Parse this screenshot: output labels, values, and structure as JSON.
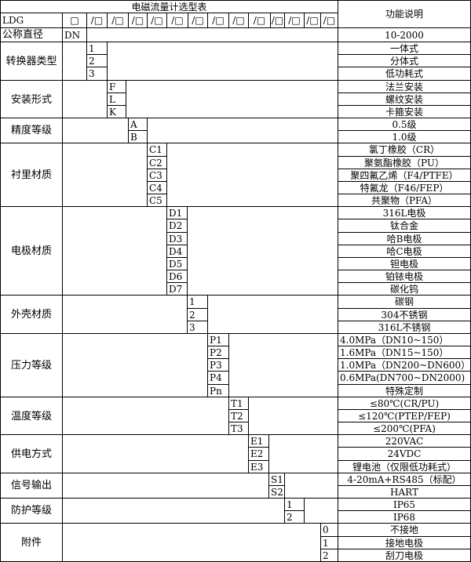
{
  "title": "电磁流量计选型表",
  "description_header": "功能说明",
  "model_row": {
    "prefix": "LDG",
    "boxes": [
      "□",
      "/□",
      "/□",
      "/□",
      "/□",
      "/□",
      "/□",
      "/□",
      "/□",
      "/□",
      "/□",
      "/□",
      "/□",
      "/□"
    ]
  },
  "nominal": {
    "label": "公称直径",
    "code": "DN",
    "description": "10-2000"
  },
  "groups": [
    {
      "label": "转换器类型",
      "col": 0,
      "items": [
        {
          "code": "1",
          "desc": "一体式"
        },
        {
          "code": "2",
          "desc": "分体式"
        },
        {
          "code": "3",
          "desc": "低功耗式"
        }
      ]
    },
    {
      "label": "安装形式",
      "col": 1,
      "items": [
        {
          "code": "F",
          "desc": "法兰安装"
        },
        {
          "code": "L",
          "desc": "螺纹安装"
        },
        {
          "code": "K",
          "desc": "卡箍安装"
        }
      ]
    },
    {
      "label": "精度等级",
      "col": 2,
      "items": [
        {
          "code": "A",
          "desc": "0.5级"
        },
        {
          "code": "B",
          "desc": "1.0级"
        }
      ]
    },
    {
      "label": "衬里材质",
      "col": 3,
      "items": [
        {
          "code": "C1",
          "desc": "氯丁橡胶（CR）"
        },
        {
          "code": "C2",
          "desc": "聚氨酯橡胶（PU）"
        },
        {
          "code": "C3",
          "desc": "聚四氟乙烯（F4/PTFE）"
        },
        {
          "code": "C4",
          "desc": "特氟龙（F46/FEP）"
        },
        {
          "code": "C5",
          "desc": "共聚物（PFA）"
        }
      ]
    },
    {
      "label": "电极材质",
      "col": 4,
      "items": [
        {
          "code": "D1",
          "desc": "316L电极"
        },
        {
          "code": "D2",
          "desc": "钛合金"
        },
        {
          "code": "D3",
          "desc": "哈B电极"
        },
        {
          "code": "D4",
          "desc": "哈C电极"
        },
        {
          "code": "D5",
          "desc": "钽电极"
        },
        {
          "code": "D6",
          "desc": "铂铱电极"
        },
        {
          "code": "D7",
          "desc": "碳化钨"
        }
      ]
    },
    {
      "label": "外壳材质",
      "col": 5,
      "items": [
        {
          "code": "1",
          "desc": "碳钢"
        },
        {
          "code": "2",
          "desc": "304不锈钢"
        },
        {
          "code": "3",
          "desc": "316L不锈钢"
        }
      ]
    },
    {
      "label": "压力等级",
      "col": 6,
      "left": true,
      "items": [
        {
          "code": "P1",
          "desc": "4.0MPa（DN10~150）"
        },
        {
          "code": "P2",
          "desc": "1.6MPa（DN15~150）"
        },
        {
          "code": "P3",
          "desc": "1.0MPa（DN200~DN600）"
        },
        {
          "code": "P4",
          "desc": "0.6MPa(DN700~DN2000)"
        },
        {
          "code": "Pn",
          "desc": "特殊定制",
          "center": true
        }
      ]
    },
    {
      "label": "温度等级",
      "col": 7,
      "items": [
        {
          "code": "T1",
          "desc": "≤80℃(CR/PU)"
        },
        {
          "code": "T2",
          "desc": "≤120℃(PTEP/FEP)"
        },
        {
          "code": "T3",
          "desc": "≤200℃(PFA)"
        }
      ]
    },
    {
      "label": "供电方式",
      "col": 8,
      "items": [
        {
          "code": "E1",
          "desc": "220VAC"
        },
        {
          "code": "E2",
          "desc": "24VDC"
        },
        {
          "code": "E3",
          "desc": "锂电池（仅限低功耗式）"
        }
      ]
    },
    {
      "label": "信号输出",
      "col": 9,
      "items": [
        {
          "code": "S1",
          "desc": "4-20mA+RS485（标配）"
        },
        {
          "code": "S2",
          "desc": "HART"
        }
      ]
    },
    {
      "label": "防护等级",
      "col": 10,
      "items": [
        {
          "code": "1",
          "desc": "IP65"
        },
        {
          "code": "2",
          "desc": "IP68"
        }
      ]
    },
    {
      "label": "附件",
      "col": 11,
      "items": [
        {
          "code": "0",
          "desc": "不接地"
        },
        {
          "code": "1",
          "desc": "接地电极"
        },
        {
          "code": "2",
          "desc": "刮刀电极"
        }
      ]
    }
  ]
}
